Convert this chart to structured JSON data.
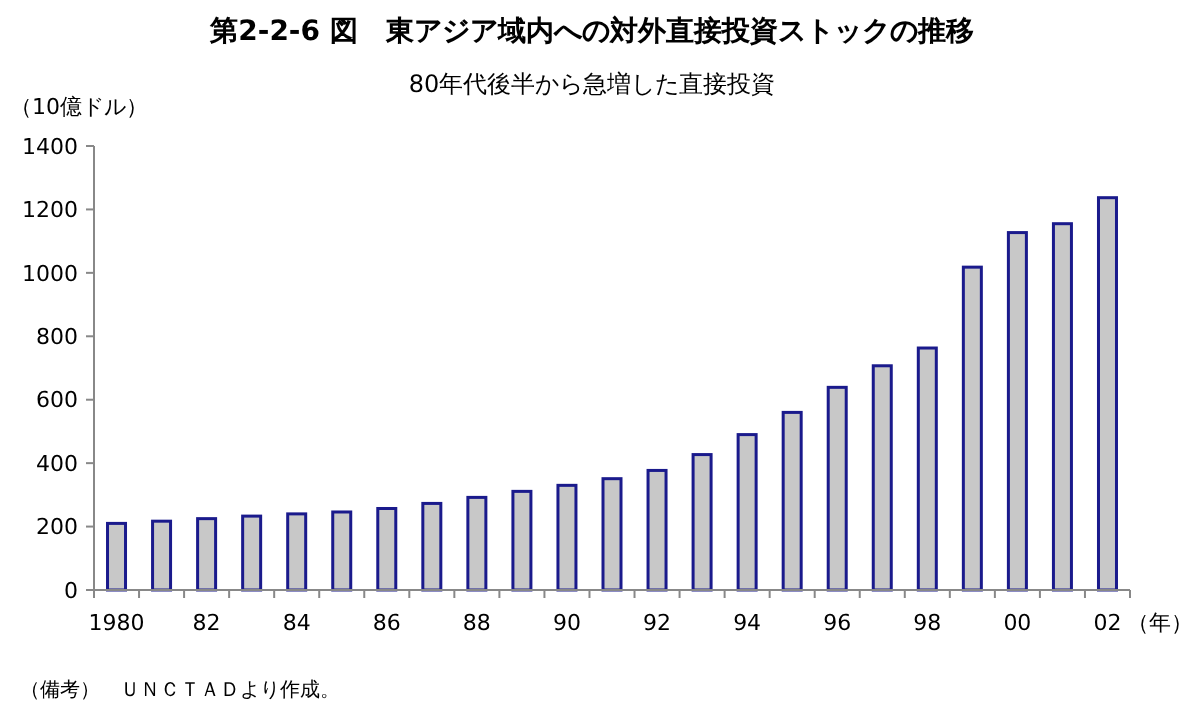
{
  "chart_data": {
    "type": "bar",
    "title": "第2-2-6 図　東アジア域内への対外直接投資ストックの推移",
    "subtitle": "80年代後半から急増した直接投資",
    "ylabel": "（10億ドル）",
    "xlabel": "（年）",
    "categories": [
      "1980",
      null,
      "82",
      null,
      "84",
      null,
      "86",
      null,
      "88",
      null,
      "90",
      null,
      "92",
      null,
      "94",
      null,
      "96",
      null,
      "98",
      null,
      "00",
      null,
      "02"
    ],
    "values": [
      210,
      217,
      225,
      233,
      240,
      246,
      257,
      273,
      292,
      311,
      330,
      351,
      377,
      427,
      490,
      560,
      639,
      707,
      763,
      1018,
      1127,
      1155,
      1237
    ],
    "color": "#c8c8c8",
    "ylim": [
      0,
      1400
    ],
    "yticks": [
      0,
      200,
      400,
      600,
      800,
      1000,
      1200,
      1400
    ],
    "grid": false,
    "annotations": [
      "（備考）　ＵＮＣＴＡＤより作成。"
    ]
  }
}
